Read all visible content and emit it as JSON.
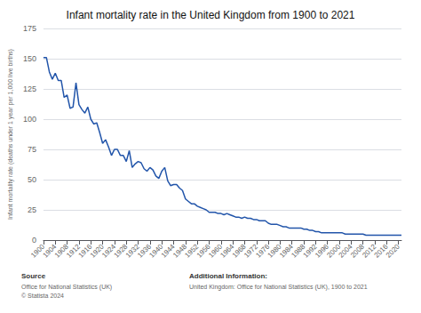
{
  "chart_data": {
    "type": "line",
    "title": "Infant mortality rate in the United Kingdom from 1900 to 2021",
    "ylabel": "Infant mortality rate (deaths under 1 year per 1,000 live births)",
    "color": "#2255aa",
    "x": [
      1900,
      1901,
      1902,
      1903,
      1904,
      1905,
      1906,
      1907,
      1908,
      1909,
      1910,
      1911,
      1912,
      1913,
      1914,
      1915,
      1916,
      1917,
      1918,
      1919,
      1920,
      1921,
      1922,
      1923,
      1924,
      1925,
      1926,
      1927,
      1928,
      1929,
      1930,
      1931,
      1932,
      1933,
      1934,
      1935,
      1936,
      1937,
      1938,
      1939,
      1940,
      1941,
      1942,
      1943,
      1944,
      1945,
      1946,
      1947,
      1948,
      1949,
      1950,
      1951,
      1952,
      1953,
      1954,
      1955,
      1956,
      1957,
      1958,
      1959,
      1960,
      1961,
      1962,
      1963,
      1964,
      1965,
      1966,
      1967,
      1968,
      1969,
      1970,
      1971,
      1972,
      1973,
      1974,
      1975,
      1976,
      1977,
      1978,
      1979,
      1980,
      1981,
      1982,
      1983,
      1984,
      1985,
      1986,
      1987,
      1988,
      1989,
      1990,
      1991,
      1992,
      1993,
      1994,
      1995,
      1996,
      1997,
      1998,
      1999,
      2000,
      2001,
      2002,
      2003,
      2004,
      2005,
      2006,
      2007,
      2008,
      2009,
      2010,
      2011,
      2012,
      2013,
      2014,
      2015,
      2016,
      2017,
      2018,
      2019,
      2020,
      2021
    ],
    "values": [
      151,
      151,
      139,
      133,
      138,
      132,
      132,
      118,
      120,
      109,
      110,
      130,
      112,
      108,
      105,
      110,
      100,
      96,
      97,
      89,
      80,
      83,
      77,
      70,
      75,
      75,
      70,
      70,
      65,
      74,
      60,
      63,
      65,
      64,
      59,
      57,
      60,
      58,
      53,
      51,
      57,
      60,
      49,
      45,
      46,
      46,
      43,
      41,
      34,
      32,
      30,
      30,
      28,
      27,
      26,
      25,
      23,
      23,
      23,
      22,
      22,
      21,
      22,
      21,
      20,
      19,
      19,
      18,
      19,
      18,
      18,
      17,
      17,
      16,
      16,
      16,
      14,
      13,
      13,
      13,
      12,
      11,
      11,
      10,
      10,
      10,
      10,
      10,
      9,
      9,
      8,
      8,
      7,
      7,
      6,
      6,
      6,
      6,
      6,
      6,
      6,
      6,
      5,
      5,
      5,
      5,
      5,
      5,
      5,
      4,
      4,
      4,
      4,
      4,
      4,
      4,
      4,
      4,
      4,
      4,
      4,
      4
    ],
    "xlim": [
      1900,
      2021
    ],
    "xticks": [
      1900,
      1904,
      1908,
      1912,
      1916,
      1920,
      1924,
      1928,
      1932,
      1936,
      1940,
      1944,
      1948,
      1952,
      1956,
      1960,
      1964,
      1968,
      1972,
      1976,
      1980,
      1984,
      1988,
      1992,
      1996,
      2000,
      2004,
      2008,
      2012,
      2016,
      2020
    ],
    "ylim": [
      0,
      175
    ],
    "yticks": [
      0,
      25,
      50,
      75,
      100,
      125,
      150,
      175
    ],
    "grid": true,
    "annotations": [
      {
        "title": "Source",
        "text": "Office for National Statistics (UK)\n© Statista 2024"
      },
      {
        "title": "Additional Information:",
        "text": "United Kingdom: Office for National Statistics (UK), 1900 to 2021"
      }
    ]
  }
}
